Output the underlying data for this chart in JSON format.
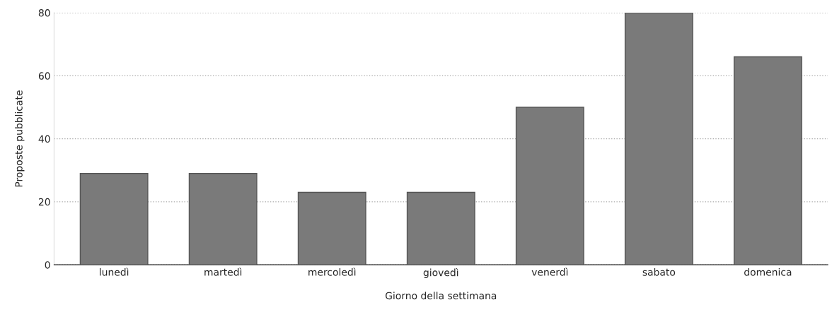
{
  "chart_data": {
    "type": "bar",
    "xlabel": "Giorno della settimana",
    "ylabel": "Proposte pubblicate",
    "categories": [
      "lunedì",
      "martedì",
      "mercoledì",
      "giovedì",
      "venerdì",
      "sabato",
      "domenica"
    ],
    "values": [
      29,
      29,
      23,
      23,
      50,
      80,
      66
    ],
    "color": "#7a7a7a",
    "ylim": [
      0,
      80
    ],
    "yticks": [
      0,
      20,
      40,
      60,
      80
    ],
    "grid": "y",
    "legend": false
  }
}
